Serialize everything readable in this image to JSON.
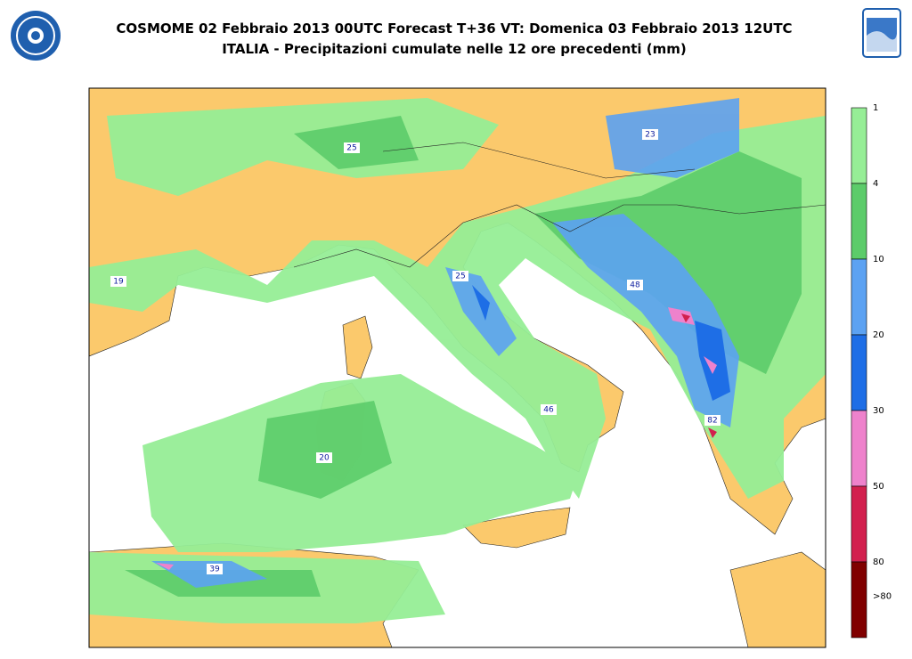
{
  "header": {
    "title": "COSMOME 02 Febbraio 2013 00UTC Forecast T+36 VT: Domenica 03 Febbraio 2013 12UTC",
    "subtitle": "ITALIA - Precipitazioni cumulate nelle 12 ore precedenti (mm)"
  },
  "legend": {
    "labels": [
      "1",
      "4",
      "10",
      "20",
      "30",
      "50",
      "80",
      ">80"
    ],
    "colors": [
      "#96ee96",
      "#5ccc6a",
      "#5ca2f2",
      "#1e6ee6",
      "#ee82cc",
      "#d2204e",
      "#800000"
    ]
  },
  "maxima": [
    "25",
    "23",
    "19",
    "25",
    "48",
    "46",
    "82",
    "20",
    "39"
  ]
}
